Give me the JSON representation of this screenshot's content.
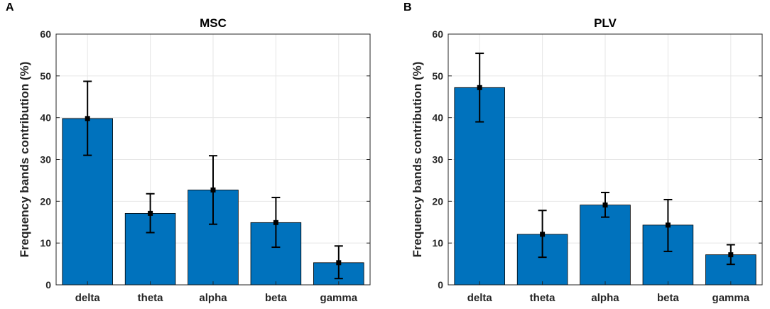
{
  "panels": [
    {
      "letter": "A"
    },
    {
      "letter": "B"
    }
  ],
  "colors": {
    "bar": "#0072BD",
    "grid": "#e6e6e6",
    "axis": "#262626",
    "error": "#000000"
  },
  "chart_data": [
    {
      "type": "bar",
      "title": "MSC",
      "xlabel": "",
      "ylabel": "Frequency bands contribution (%)",
      "categories": [
        "delta",
        "theta",
        "alpha",
        "beta",
        "gamma"
      ],
      "values": [
        39.8,
        17.1,
        22.7,
        14.9,
        5.3
      ],
      "error_low": [
        31.0,
        12.5,
        14.5,
        9.0,
        1.5
      ],
      "error_high": [
        48.7,
        21.8,
        30.9,
        20.9,
        9.3
      ],
      "ylim": [
        0,
        60
      ],
      "yticks": [
        0,
        10,
        20,
        30,
        40,
        50,
        60
      ],
      "grid": true
    },
    {
      "type": "bar",
      "title": "PLV",
      "xlabel": "",
      "ylabel": "Frequency bands contribution (%)",
      "categories": [
        "delta",
        "theta",
        "alpha",
        "beta",
        "gamma"
      ],
      "values": [
        47.2,
        12.1,
        19.1,
        14.3,
        7.2
      ],
      "error_low": [
        39.0,
        6.6,
        16.2,
        8.0,
        4.9
      ],
      "error_high": [
        55.4,
        17.8,
        22.1,
        20.4,
        9.6
      ],
      "ylim": [
        0,
        60
      ],
      "yticks": [
        0,
        10,
        20,
        30,
        40,
        50,
        60
      ],
      "grid": true
    }
  ]
}
